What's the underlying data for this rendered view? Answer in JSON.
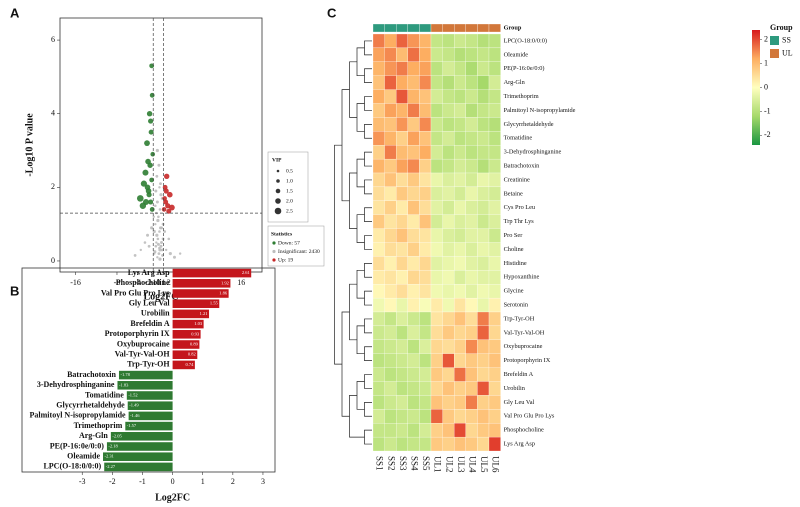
{
  "chart_data": [
    {
      "type": "scatter",
      "panel_label": "A",
      "xlabel": "Log2FC",
      "ylabel": "-Log10 P value",
      "xlim": [
        -19,
        20
      ],
      "ylim": [
        -0.3,
        6.6
      ],
      "xticks": [
        -16,
        -8,
        -4,
        -2,
        -1,
        0,
        1,
        2,
        4,
        8,
        16
      ],
      "yticks": [
        0,
        2,
        4,
        6
      ],
      "thresholds": {
        "x": [
          -1,
          1
        ],
        "y": 1.3
      },
      "size_legend": {
        "title": "VIP",
        "values": [
          0.5,
          {
            "value": 1,
            "label": "1.0"
          },
          1.5,
          {
            "value": 2,
            "label": "2.0"
          },
          2.5
        ]
      },
      "legend_title": "Statistics",
      "series": [
        {
          "name": "Insignificant: 2430",
          "color": "#bdbdbd",
          "x": [
            -0.2,
            0.1,
            0.3,
            -0.5,
            0.6,
            -0.8,
            0.9,
            -0.3,
            0.2,
            0.4,
            -0.6,
            0.7,
            -0.1,
            0.0,
            0.5,
            -0.4,
            0.8,
            -0.7,
            0.3,
            -0.2,
            1.5,
            -1.8,
            2.3,
            -2.6,
            3.1,
            -3.4,
            1.2,
            -1.3,
            2.0,
            -2.1,
            0.2,
            -0.3,
            0.5,
            -0.6,
            0.1,
            -0.9,
            0.4,
            -0.2,
            0.7,
            -0.5,
            4.2,
            -4.5,
            0.3,
            -0.1,
            0.6,
            -0.4,
            0.9,
            -0.8,
            0.2,
            0.0
          ],
          "values": [
            0.1,
            0.2,
            0.3,
            0.4,
            0.5,
            0.2,
            0.6,
            0.7,
            0.8,
            0.9,
            1.0,
            0.3,
            1.1,
            1.2,
            0.4,
            0.5,
            0.15,
            0.25,
            1.4,
            1.6,
            0.3,
            0.4,
            0.2,
            0.5,
            0.1,
            0.3,
            0.8,
            0.9,
            0.6,
            0.7,
            2.0,
            2.3,
            1.8,
            1.5,
            2.6,
            1.2,
            2.1,
            3.0,
            1.7,
            1.9,
            0.2,
            0.15,
            0.05,
            0.6,
            0.9,
            1.3,
            1.0,
            0.8,
            0.35,
            0.45
          ],
          "vip": [
            0.4,
            0.6,
            0.8,
            0.5,
            0.7,
            0.4,
            0.6,
            0.8,
            0.5,
            0.7,
            0.4,
            0.6,
            0.8,
            0.5,
            0.7,
            0.4,
            0.6,
            0.8,
            0.5,
            0.7,
            0.4,
            0.6,
            0.8,
            0.5,
            0.7,
            0.4,
            0.6,
            0.8,
            0.5,
            0.7,
            0.4,
            0.6,
            0.8,
            0.5,
            0.7,
            0.4,
            0.6,
            0.8,
            0.5,
            0.7,
            0.4,
            0.6,
            0.8,
            0.5,
            0.7,
            0.4,
            0.6,
            0.8,
            0.5,
            0.7
          ]
        },
        {
          "name": "Down: 57",
          "color": "#2e7d32",
          "x": [
            -1.2,
            -1.5,
            -1.8,
            -2.1,
            -1.3,
            -2.5,
            -1.6,
            -1.1,
            -3.0,
            -2.2,
            -1.4,
            -1.9,
            -2.8,
            -1.7,
            -1.2,
            -3.5,
            -2.0,
            -1.5,
            -1.3,
            -2.4
          ],
          "values": [
            1.4,
            1.6,
            1.8,
            2.0,
            2.2,
            2.4,
            2.6,
            2.9,
            1.5,
            3.2,
            3.5,
            1.9,
            2.1,
            4.0,
            4.5,
            1.7,
            2.7,
            3.8,
            5.3,
            1.6
          ],
          "vip": [
            1.6,
            1.7,
            1.8,
            2.0,
            1.6,
            2.2,
            1.9,
            1.5,
            2.4,
            2.1,
            1.7,
            2.0,
            2.3,
            1.9,
            1.6,
            2.5,
            2.0,
            1.8,
            1.6,
            2.2
          ]
        },
        {
          "name": "Up: 19",
          "color": "#c62828",
          "x": [
            1.1,
            1.4,
            1.8,
            2.2,
            1.3,
            2.6,
            1.6,
            1.2,
            2.0,
            1.5
          ],
          "values": [
            1.4,
            1.6,
            1.5,
            1.8,
            2.0,
            1.45,
            2.3,
            1.7,
            1.35,
            1.9
          ],
          "vip": [
            1.5,
            1.7,
            1.8,
            2.0,
            1.6,
            2.1,
            1.9,
            1.5,
            1.7,
            1.8
          ]
        }
      ]
    },
    {
      "type": "barh",
      "panel_label": "B",
      "xlabel": "Log2FC",
      "xlim": [
        -5,
        3.4
      ],
      "xticks": [
        -3,
        -2,
        -1,
        0,
        1,
        2,
        3
      ],
      "colors": {
        "positive": "#c4161c",
        "negative": "#2f7a32"
      },
      "categories": [
        "Lys Arg Asp",
        "Phosphocholine",
        "Val Pro Glu Pro Lys",
        "Gly Leu Val",
        "Urobilin",
        "Brefeldin A",
        "Protoporphyrin IX",
        "Oxybuprocaine",
        "Val-Tyr-Val-OH",
        "Trp-Tyr-OH",
        "Batrachotoxin",
        "3-Dehydrosphinganine",
        "Tomatidine",
        "Glycyrrhetaldehyde",
        "Palmitoyl N-isopropylamide",
        "Trimethoprim",
        "Arg-Gln",
        "PE(P-16:0e/0:0)",
        "Oleamide",
        "LPC(O-18:0/0:0)"
      ],
      "values": [
        2.61,
        1.92,
        1.86,
        1.55,
        1.21,
        1.03,
        0.93,
        0.89,
        0.82,
        0.74,
        -1.78,
        -1.83,
        -1.52,
        -1.49,
        -1.46,
        -1.57,
        -2.05,
        -2.18,
        -2.31,
        -2.27
      ]
    },
    {
      "type": "heatmap",
      "panel_label": "C",
      "columns": [
        "SS1",
        "SS2",
        "SS3",
        "SS4",
        "SS5",
        "UL1",
        "UL2",
        "UL3",
        "UL4",
        "UL5",
        "UL6"
      ],
      "column_groups": [
        "SS",
        "SS",
        "SS",
        "SS",
        "SS",
        "UL",
        "UL",
        "UL",
        "UL",
        "UL",
        "UL"
      ],
      "group_legend": {
        "title": "Group",
        "names": [
          "SS",
          "UL"
        ],
        "colors": [
          "#2e9a7e",
          "#d2773a"
        ]
      },
      "zlim": [
        -2.4,
        2.4
      ],
      "colorbar_ticks": [
        -2,
        -1,
        0,
        1,
        2
      ],
      "colorscale": [
        "#1a9641",
        "#a6d96a",
        "#ffffbf",
        "#fdae61",
        "#d7191c"
      ],
      "rows": [
        "LPC(O-18:0/0:0)",
        "Oleamide",
        "PE(P-16:0e/0:0)",
        "Arg-Gln",
        "Trimethoprim",
        "Palmitoyl N-isopropylamide",
        "Glycyrrhetaldehyde",
        "Tomatidine",
        "3-Dehydrosphinganine",
        "Batrachotoxin",
        "Creatinine",
        "Betaine",
        "Cys Pro Leu",
        "Trp Thr Lys",
        "Pro Ser",
        "Choline",
        "Histidine",
        "Hypoxanthine",
        "Glycine",
        "Serotonin",
        "Trp-Tyr-OH",
        "Val-Tyr-Val-OH",
        "Oxybuprocaine",
        "Protoporphyrin IX",
        "Brefeldin A",
        "Urobilin",
        "Gly Leu Val",
        "Val Pro Glu Pro Lys",
        "Phosphocholine",
        "Lys Arg Asp"
      ],
      "values": [
        [
          1.6,
          1.2,
          1.8,
          1.4,
          1.1,
          -0.8,
          -0.9,
          -0.7,
          -0.8,
          -1.0,
          -0.9
        ],
        [
          1.3,
          1.5,
          1.0,
          1.7,
          1.2,
          -0.7,
          -0.8,
          -1.0,
          -0.9,
          -0.8,
          -0.9
        ],
        [
          1.1,
          1.4,
          1.6,
          1.2,
          1.3,
          -0.9,
          -0.6,
          -0.8,
          -1.1,
          -0.7,
          -0.9
        ],
        [
          0.9,
          1.8,
          1.2,
          1.0,
          1.5,
          -0.8,
          -1.0,
          -0.7,
          -0.9,
          -1.2,
          -0.6
        ],
        [
          1.2,
          0.8,
          1.9,
          1.1,
          0.9,
          -0.6,
          -0.8,
          -0.9,
          -0.7,
          -1.0,
          -0.8
        ],
        [
          0.8,
          1.3,
          1.1,
          1.6,
          1.0,
          -0.9,
          -0.7,
          -0.6,
          -1.0,
          -0.8,
          -0.7
        ],
        [
          1.0,
          0.9,
          1.4,
          0.8,
          1.5,
          -0.7,
          -0.9,
          -0.8,
          -0.6,
          -0.9,
          -1.0
        ],
        [
          1.4,
          1.1,
          0.7,
          1.3,
          0.9,
          -0.8,
          -0.6,
          -0.9,
          -0.8,
          -0.7,
          -0.9
        ],
        [
          0.7,
          1.6,
          1.0,
          0.9,
          1.2,
          -0.6,
          -0.9,
          -0.7,
          -0.9,
          -0.8,
          -0.8
        ],
        [
          1.1,
          0.8,
          1.3,
          1.5,
          0.7,
          -0.9,
          -0.8,
          -0.6,
          -0.7,
          -1.0,
          -0.7
        ],
        [
          0.6,
          0.9,
          0.5,
          0.8,
          0.4,
          -0.3,
          -0.5,
          -0.4,
          -0.6,
          -0.3,
          -0.4
        ],
        [
          0.5,
          0.3,
          0.8,
          0.6,
          0.7,
          -0.5,
          -0.4,
          -0.6,
          -0.3,
          -0.5,
          -0.6
        ],
        [
          0.4,
          0.7,
          0.3,
          0.9,
          0.5,
          -0.4,
          -0.6,
          -0.3,
          -0.5,
          -0.6,
          -0.4
        ],
        [
          0.8,
          0.4,
          0.6,
          0.3,
          0.9,
          -0.6,
          -0.3,
          -0.5,
          -0.4,
          -0.7,
          -0.5
        ],
        [
          0.3,
          0.6,
          0.9,
          0.5,
          0.4,
          -0.3,
          -0.5,
          -0.6,
          -0.4,
          -0.4,
          -0.7
        ],
        [
          0.2,
          0.5,
          0.4,
          0.7,
          0.3,
          -0.2,
          -0.4,
          -0.3,
          -0.5,
          -0.3,
          -0.4
        ],
        [
          0.5,
          0.2,
          0.6,
          0.3,
          0.6,
          -0.4,
          -0.3,
          -0.2,
          -0.4,
          -0.5,
          -0.3
        ],
        [
          0.3,
          0.4,
          0.2,
          0.6,
          0.5,
          -0.3,
          -0.2,
          -0.5,
          -0.3,
          -0.4,
          -0.4
        ],
        [
          0.1,
          0.3,
          0.5,
          0.2,
          0.4,
          -0.2,
          -0.3,
          -0.2,
          -0.4,
          -0.2,
          -0.3
        ],
        [
          -0.2,
          0.1,
          -0.3,
          0.2,
          -0.1,
          0.3,
          -0.2,
          0.4,
          0.1,
          -0.3,
          0.2
        ],
        [
          -0.6,
          -0.8,
          -0.5,
          -0.7,
          -0.9,
          0.4,
          0.6,
          0.9,
          0.5,
          1.6,
          0.7
        ],
        [
          -0.7,
          -0.6,
          -0.9,
          -0.5,
          -0.8,
          0.5,
          0.8,
          0.6,
          0.7,
          1.8,
          0.6
        ],
        [
          -0.8,
          -0.7,
          -0.6,
          -0.9,
          -0.5,
          0.6,
          0.5,
          0.7,
          1.5,
          0.9,
          0.8
        ],
        [
          -0.9,
          -0.8,
          -0.7,
          -0.6,
          -0.9,
          0.7,
          1.9,
          0.6,
          0.8,
          0.7,
          0.9
        ],
        [
          -0.7,
          -0.9,
          -0.8,
          -0.7,
          -0.6,
          0.8,
          0.6,
          1.7,
          0.9,
          0.6,
          0.7
        ],
        [
          -0.8,
          -0.6,
          -0.9,
          -0.8,
          -0.7,
          0.6,
          0.9,
          0.7,
          0.8,
          1.9,
          0.6
        ],
        [
          -0.9,
          -0.7,
          -0.6,
          -0.9,
          -0.8,
          0.9,
          0.7,
          0.8,
          1.6,
          0.7,
          0.8
        ],
        [
          -0.6,
          -0.9,
          -0.8,
          -0.7,
          -0.9,
          1.8,
          0.8,
          0.6,
          0.7,
          0.9,
          0.7
        ],
        [
          -0.8,
          -0.8,
          -0.7,
          -0.9,
          -0.6,
          0.7,
          0.9,
          2.0,
          0.6,
          0.8,
          0.9
        ],
        [
          -0.9,
          -0.7,
          -0.9,
          -0.8,
          -0.8,
          0.8,
          0.7,
          0.9,
          0.8,
          0.6,
          2.1
        ]
      ]
    }
  ]
}
